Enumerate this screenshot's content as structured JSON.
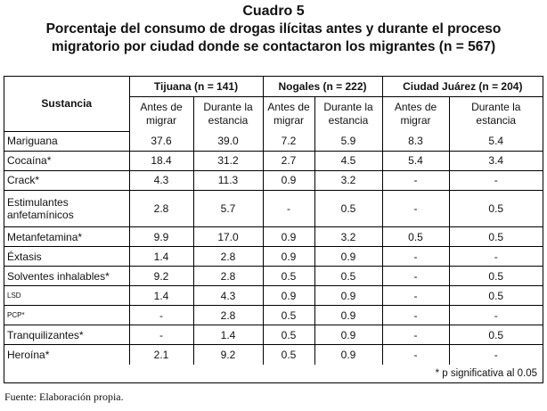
{
  "title": "Cuadro 5",
  "subtitle_line1": "Porcentaje del consumo de drogas ilícitas antes y durante el proceso",
  "subtitle_line2": "migratorio por ciudad donde se contactaron los migrantes (n = 567)",
  "header": {
    "substance": "Sustancia",
    "cities": [
      "Tijuana (n = 141)",
      "Nogales (n = 222)",
      "Ciudad Juárez (n = 204)"
    ],
    "before": [
      "Antes de",
      "migrar"
    ],
    "during": [
      "Durante la",
      "estancia"
    ]
  },
  "rows": [
    {
      "name": "Mariguana",
      "values": [
        "37.6",
        "39.0",
        "7.2",
        "5.9",
        "8.3",
        "5.4"
      ]
    },
    {
      "name": "Cocaína*",
      "values": [
        "18.4",
        "31.2",
        "2.7",
        "4.5",
        "5.4",
        "3.4"
      ]
    },
    {
      "name": "Crack*",
      "values": [
        "4.3",
        "11.3",
        "0.9",
        "3.2",
        "-",
        "-"
      ]
    },
    {
      "name": "Estimulantes",
      "name2": "anfetamínicos",
      "values": [
        "2.8",
        "5.7",
        "-",
        "0.5",
        "-",
        "0.5"
      ]
    },
    {
      "name": "Metanfetamina*",
      "values": [
        "9.9",
        "17.0",
        "0.9",
        "3.2",
        "0.5",
        "0.5"
      ]
    },
    {
      "name": "Éxtasis",
      "values": [
        "1.4",
        "2.8",
        "0.9",
        "0.9",
        "-",
        "-"
      ]
    },
    {
      "name": "Solventes inhalables*",
      "values": [
        "9.2",
        "2.8",
        "0.5",
        "0.5",
        "-",
        "0.5"
      ]
    },
    {
      "name": "LSD",
      "small": true,
      "values": [
        "1.4",
        "4.3",
        "0.9",
        "0.9",
        "-",
        "0.5"
      ]
    },
    {
      "name": "PCP*",
      "small": true,
      "values": [
        "-",
        "2.8",
        "0.5",
        "0.9",
        "-",
        "-"
      ]
    },
    {
      "name": "Tranquilizantes*",
      "values": [
        "-",
        "1.4",
        "0.5",
        "0.9",
        "-",
        "0.5"
      ]
    },
    {
      "name": "Heroína*",
      "values": [
        "2.1",
        "9.2",
        "0.5",
        "0.9",
        "-",
        "-"
      ]
    }
  ],
  "footnote": "* p significativa al 0.05",
  "source": "Fuente: Elaboración propia."
}
